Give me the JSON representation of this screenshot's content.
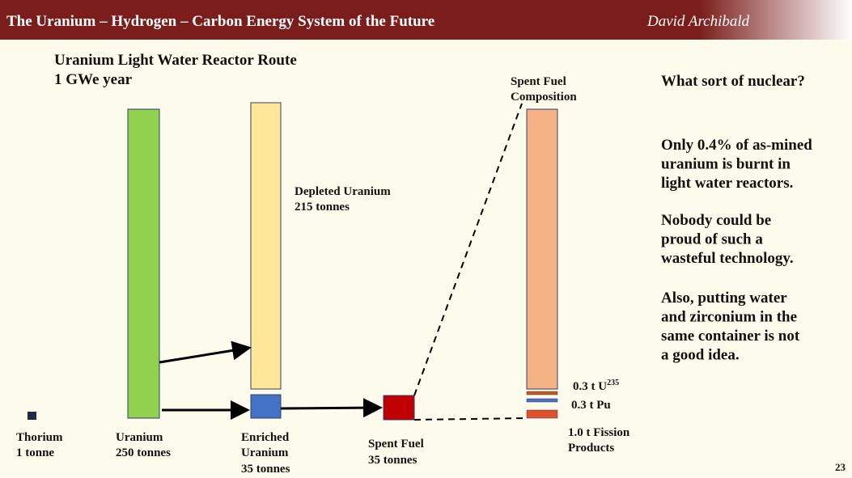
{
  "header": {
    "title": "The Uranium – Hydrogen – Carbon Energy System of the Future",
    "author": "David Archibald"
  },
  "heading": [
    "Uranium Light Water Reactor Route",
    "1 GWe year"
  ],
  "labels": {
    "thorium": [
      "Thorium",
      "1 tonne"
    ],
    "uranium": [
      "Uranium",
      "250 tonnes"
    ],
    "enriched": [
      "Enriched",
      "Uranium",
      "35 tonnes"
    ],
    "depleted": [
      "Depleted Uranium",
      "215 tonnes"
    ],
    "spent_fuel": [
      "Spent Fuel",
      "35 tonnes"
    ],
    "composition": [
      "Spent Fuel",
      "Composition"
    ],
    "u235": {
      "text": "0.3 t U",
      "sup": "235"
    },
    "pu": "0.3 t Pu",
    "fission": [
      "1.0 t Fission",
      "Products"
    ]
  },
  "sidebar": {
    "question": "What sort of nuclear?",
    "paragraphs": [
      [
        "Only 0.4% of as-mined",
        "uranium is burnt in",
        "light water reactors."
      ],
      [
        "Nobody could be",
        "proud of such a",
        "wasteful technology."
      ],
      [
        "Also, putting water",
        "and zirconium in the",
        "same container is not",
        "a good idea."
      ]
    ]
  },
  "page_number": "23"
}
